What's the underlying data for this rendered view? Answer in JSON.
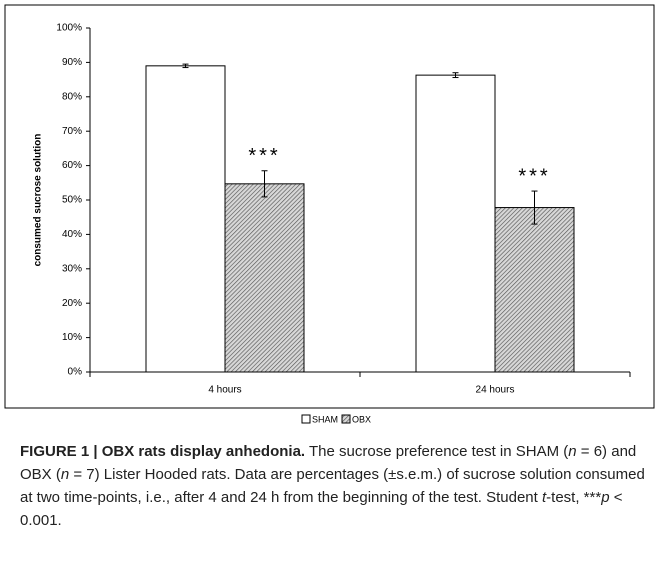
{
  "chart_data": {
    "type": "bar",
    "y_label": "consumed sucrose solution",
    "categories": [
      "4 hours",
      "24 hours"
    ],
    "series": [
      {
        "name": "SHAM",
        "color": "#ffffff",
        "values": [
          89,
          86.3
        ],
        "errors": [
          0.5,
          0.7
        ]
      },
      {
        "name": "OBX",
        "color": "#9a9a9a",
        "pattern": "hatch",
        "values": [
          54.7,
          47.8
        ],
        "errors": [
          3.8,
          4.8
        ],
        "annotations": [
          "***",
          "***"
        ]
      }
    ],
    "ylim": [
      0,
      100
    ],
    "yticks": [
      {
        "value": 0,
        "label": "0%"
      },
      {
        "value": 10,
        "label": "10%"
      },
      {
        "value": 20,
        "label": "20%"
      },
      {
        "value": 30,
        "label": "30%"
      },
      {
        "value": 40,
        "label": "40%"
      },
      {
        "value": 50,
        "label": "50%"
      },
      {
        "value": 60,
        "label": "60%"
      },
      {
        "value": 70,
        "label": "70%"
      },
      {
        "value": 80,
        "label": "80%"
      },
      {
        "value": 90,
        "label": "90%"
      },
      {
        "value": 100,
        "label": "100%"
      }
    ],
    "legend": "bottom"
  },
  "caption": [
    {
      "text": "FIGURE 1 | OBX rats display anhedonia.",
      "style": "bold"
    },
    {
      "text": " The sucrose preference test in SHAM ("
    },
    {
      "text": "n",
      "style": "italic"
    },
    {
      "text": " = 6) and OBX ("
    },
    {
      "text": "n",
      "style": "italic"
    },
    {
      "text": " = 7) Lister Hooded rats. Data are percentages (±s.e.m.) of sucrose solution consumed at two time-points, i.e., after 4 and 24 h from the beginning of the test. Student "
    },
    {
      "text": "t",
      "style": "italic"
    },
    {
      "text": "-test, ***"
    },
    {
      "text": "p",
      "style": "italic"
    },
    {
      "text": " < 0.001."
    }
  ]
}
